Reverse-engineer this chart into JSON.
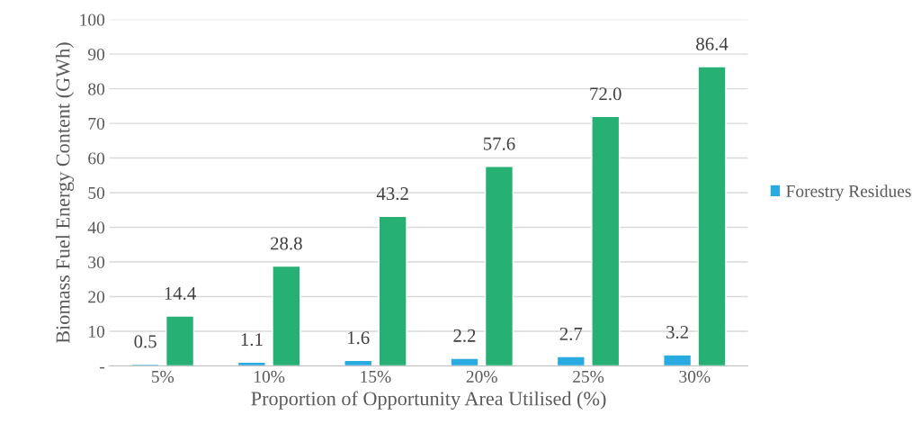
{
  "chart_data": {
    "type": "bar",
    "xlabel": "Proportion of Opportunity Area Utilised (%)",
    "ylabel": "Biomass Fuel Energy Content (GWh)",
    "categories": [
      "5%",
      "10%",
      "15%",
      "20%",
      "25%",
      "30%"
    ],
    "series": [
      {
        "name": "Forestry Residues",
        "color": "#29abe2",
        "values": [
          0.5,
          1.1,
          1.6,
          2.2,
          2.7,
          3.2
        ],
        "value_labels": [
          "0.5",
          "1.1",
          "1.6",
          "2.2",
          "2.7",
          "3.2"
        ]
      },
      {
        "color": "#27b073",
        "values": [
          14.4,
          28.8,
          43.2,
          57.6,
          72.0,
          86.4
        ],
        "value_labels": [
          "14.4",
          "28.8",
          "43.2",
          "57.6",
          "72.0",
          "86.4"
        ]
      }
    ],
    "ylim": [
      0,
      100
    ],
    "yticks": [
      {
        "value": 0,
        "label": "-"
      },
      10,
      20,
      30,
      40,
      50,
      60,
      70,
      80,
      90,
      100
    ],
    "grid": "y",
    "legend": "right"
  }
}
